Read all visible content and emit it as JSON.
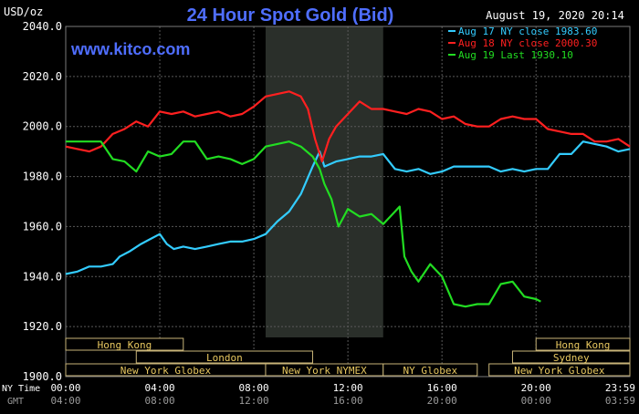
{
  "chart_data": {
    "type": "line",
    "title": "24 Hour Spot Gold (Bid)",
    "unit_label": "USD/oz",
    "timestamp": "August 19, 2020 20:14",
    "watermark": "www.kitco.com",
    "ylim": [
      1900,
      2040
    ],
    "y_ticks": [
      "2040.0",
      "2020.0",
      "2000.0",
      "1980.0",
      "1960.0",
      "1940.0",
      "1920.0",
      "1900.0"
    ],
    "x_ticks": [
      "00:00",
      "04:00",
      "08:00",
      "12:00",
      "16:00",
      "20:00",
      "23:59"
    ],
    "x_ticks_gmt": [
      "04:00",
      "08:00",
      "12:00",
      "16:00",
      "20:00",
      "00:00",
      "03:59"
    ],
    "axis_row_labels": [
      "NY Time",
      "GMT"
    ],
    "shaded_region": [
      8.5,
      13.5
    ],
    "series": [
      {
        "name": "Aug 17 NY close 1983.60",
        "color": "#33ccff",
        "points": [
          [
            0,
            1941
          ],
          [
            0.5,
            1942
          ],
          [
            1,
            1944
          ],
          [
            1.5,
            1944
          ],
          [
            2,
            1945
          ],
          [
            2.3,
            1948
          ],
          [
            2.7,
            1950
          ],
          [
            3.2,
            1953
          ],
          [
            3.6,
            1955
          ],
          [
            4,
            1957
          ],
          [
            4.3,
            1953
          ],
          [
            4.6,
            1951
          ],
          [
            5,
            1952
          ],
          [
            5.5,
            1951
          ],
          [
            6,
            1952
          ],
          [
            6.5,
            1953
          ],
          [
            7,
            1954
          ],
          [
            7.5,
            1954
          ],
          [
            8,
            1955
          ],
          [
            8.5,
            1957
          ],
          [
            9,
            1962
          ],
          [
            9.5,
            1966
          ],
          [
            10,
            1973
          ],
          [
            10.5,
            1984
          ],
          [
            10.8,
            1990
          ],
          [
            11,
            1984
          ],
          [
            11.5,
            1986
          ],
          [
            12,
            1987
          ],
          [
            12.5,
            1988
          ],
          [
            13,
            1988
          ],
          [
            13.5,
            1989
          ],
          [
            14,
            1983
          ],
          [
            14.5,
            1982
          ],
          [
            15,
            1983
          ],
          [
            15.5,
            1981
          ],
          [
            16,
            1982
          ],
          [
            16.5,
            1984
          ],
          [
            17,
            1984
          ],
          [
            17.5,
            1984
          ],
          [
            18,
            1984
          ],
          [
            18.5,
            1982
          ],
          [
            19,
            1983
          ],
          [
            19.5,
            1982
          ],
          [
            20,
            1983
          ],
          [
            20.5,
            1983
          ],
          [
            21,
            1989
          ],
          [
            21.5,
            1989
          ],
          [
            22,
            1994
          ],
          [
            22.5,
            1993
          ],
          [
            23,
            1992
          ],
          [
            23.5,
            1990
          ],
          [
            23.99,
            1991
          ]
        ]
      },
      {
        "name": "Aug 18 NY close 2000.30",
        "color": "#ff2020",
        "points": [
          [
            0,
            1992
          ],
          [
            0.5,
            1991
          ],
          [
            1,
            1990
          ],
          [
            1.5,
            1992
          ],
          [
            2,
            1997
          ],
          [
            2.5,
            1999
          ],
          [
            3,
            2002
          ],
          [
            3.5,
            2000
          ],
          [
            4,
            2006
          ],
          [
            4.5,
            2005
          ],
          [
            5,
            2006
          ],
          [
            5.5,
            2004
          ],
          [
            6,
            2005
          ],
          [
            6.5,
            2006
          ],
          [
            7,
            2004
          ],
          [
            7.5,
            2005
          ],
          [
            8,
            2008
          ],
          [
            8.5,
            2012
          ],
          [
            9,
            2013
          ],
          [
            9.5,
            2014
          ],
          [
            10,
            2012
          ],
          [
            10.3,
            2007
          ],
          [
            10.6,
            1995
          ],
          [
            10.9,
            1986
          ],
          [
            11.2,
            1995
          ],
          [
            11.5,
            2000
          ],
          [
            12,
            2005
          ],
          [
            12.5,
            2010
          ],
          [
            13,
            2007
          ],
          [
            13.5,
            2007
          ],
          [
            14,
            2006
          ],
          [
            14.5,
            2005
          ],
          [
            15,
            2007
          ],
          [
            15.5,
            2006
          ],
          [
            16,
            2003
          ],
          [
            16.5,
            2004
          ],
          [
            17,
            2001
          ],
          [
            17.5,
            2000
          ],
          [
            18,
            2000
          ],
          [
            18.5,
            2003
          ],
          [
            19,
            2004
          ],
          [
            19.5,
            2003
          ],
          [
            20,
            2003
          ],
          [
            20.5,
            1999
          ],
          [
            21,
            1998
          ],
          [
            21.5,
            1997
          ],
          [
            22,
            1997
          ],
          [
            22.5,
            1994
          ],
          [
            23,
            1994
          ],
          [
            23.5,
            1995
          ],
          [
            23.99,
            1992
          ]
        ]
      },
      {
        "name": "Aug 19 Last 1930.10",
        "color": "#22dd22",
        "points": [
          [
            0,
            1994
          ],
          [
            0.5,
            1994
          ],
          [
            1,
            1994
          ],
          [
            1.5,
            1994
          ],
          [
            2,
            1987
          ],
          [
            2.5,
            1986
          ],
          [
            3,
            1982
          ],
          [
            3.5,
            1990
          ],
          [
            4,
            1988
          ],
          [
            4.5,
            1989
          ],
          [
            5,
            1994
          ],
          [
            5.5,
            1994
          ],
          [
            6,
            1987
          ],
          [
            6.5,
            1988
          ],
          [
            7,
            1987
          ],
          [
            7.5,
            1985
          ],
          [
            8,
            1987
          ],
          [
            8.5,
            1992
          ],
          [
            9,
            1993
          ],
          [
            9.5,
            1994
          ],
          [
            10,
            1992
          ],
          [
            10.5,
            1988
          ],
          [
            10.8,
            1983
          ],
          [
            11,
            1977
          ],
          [
            11.3,
            1971
          ],
          [
            11.6,
            1960
          ],
          [
            12,
            1967
          ],
          [
            12.5,
            1964
          ],
          [
            13,
            1965
          ],
          [
            13.5,
            1961
          ],
          [
            14,
            1966
          ],
          [
            14.2,
            1968
          ],
          [
            14.4,
            1948
          ],
          [
            14.7,
            1942
          ],
          [
            15,
            1938
          ],
          [
            15.5,
            1945
          ],
          [
            16,
            1940
          ],
          [
            16.5,
            1929
          ],
          [
            17,
            1928
          ],
          [
            17.5,
            1929
          ],
          [
            18,
            1929
          ],
          [
            18.5,
            1937
          ],
          [
            19,
            1938
          ],
          [
            19.5,
            1932
          ],
          [
            20,
            1931
          ],
          [
            20.2,
            1930
          ]
        ]
      }
    ],
    "sessions": [
      {
        "label": "Hong Kong",
        "start": 0,
        "end": 5.0,
        "row": 1
      },
      {
        "label": "London",
        "start": 3.0,
        "end": 10.5,
        "row": 2
      },
      {
        "label": "New York Globex",
        "start": 0,
        "end": 8.5,
        "row": 3
      },
      {
        "label": "New York NYMEX",
        "start": 8.5,
        "end": 13.5,
        "row": 3
      },
      {
        "label": "NY Globex",
        "start": 13.5,
        "end": 17.5,
        "row": 3
      },
      {
        "label": "Sydney",
        "start": 19.0,
        "end": 23.99,
        "row": 2
      },
      {
        "label": "Hong Kong",
        "start": 20.0,
        "end": 23.99,
        "row": 1
      },
      {
        "label": "New York Globex",
        "start": 18.0,
        "end": 23.99,
        "row": 3
      }
    ]
  }
}
